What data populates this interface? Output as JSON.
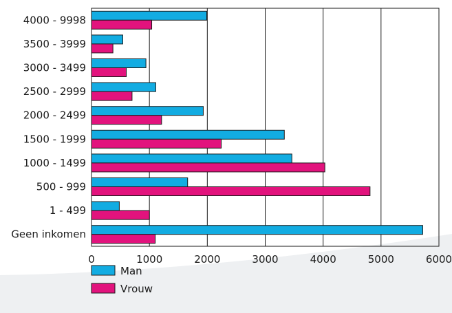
{
  "colors": {
    "man": "#12ace2",
    "vrouw": "#e2137d",
    "bar_stroke": "#1a1a1a",
    "grid": "#1a1a1a",
    "background_swoosh": "#eef0f2"
  },
  "chart_data": {
    "type": "bar",
    "orientation": "horizontal",
    "title": "",
    "xlabel": "",
    "ylabel": "",
    "categories": [
      "4000 - 9998",
      "3500 - 3999",
      "3000 - 3499",
      "2500 - 2999",
      "2000 - 2499",
      "1500 - 1999",
      "1000 - 1499",
      "500 - 999",
      "1 - 499",
      "Geen inkomen"
    ],
    "series": [
      {
        "name": "Man",
        "values": [
          1990,
          540,
          940,
          1110,
          1930,
          3330,
          3460,
          1660,
          480,
          5720
        ]
      },
      {
        "name": "Vrouw",
        "values": [
          1040,
          370,
          600,
          700,
          1210,
          2240,
          4030,
          4810,
          1000,
          1100
        ]
      }
    ],
    "xlim": [
      0,
      6000
    ],
    "xticks": [
      0,
      1000,
      2000,
      3000,
      4000,
      5000,
      6000
    ],
    "xtick_labels": [
      "0",
      "1000",
      "2000",
      "3000",
      "4000",
      "5000",
      "6000"
    ],
    "grid": "vertical",
    "legend_position": "bottom-left"
  }
}
